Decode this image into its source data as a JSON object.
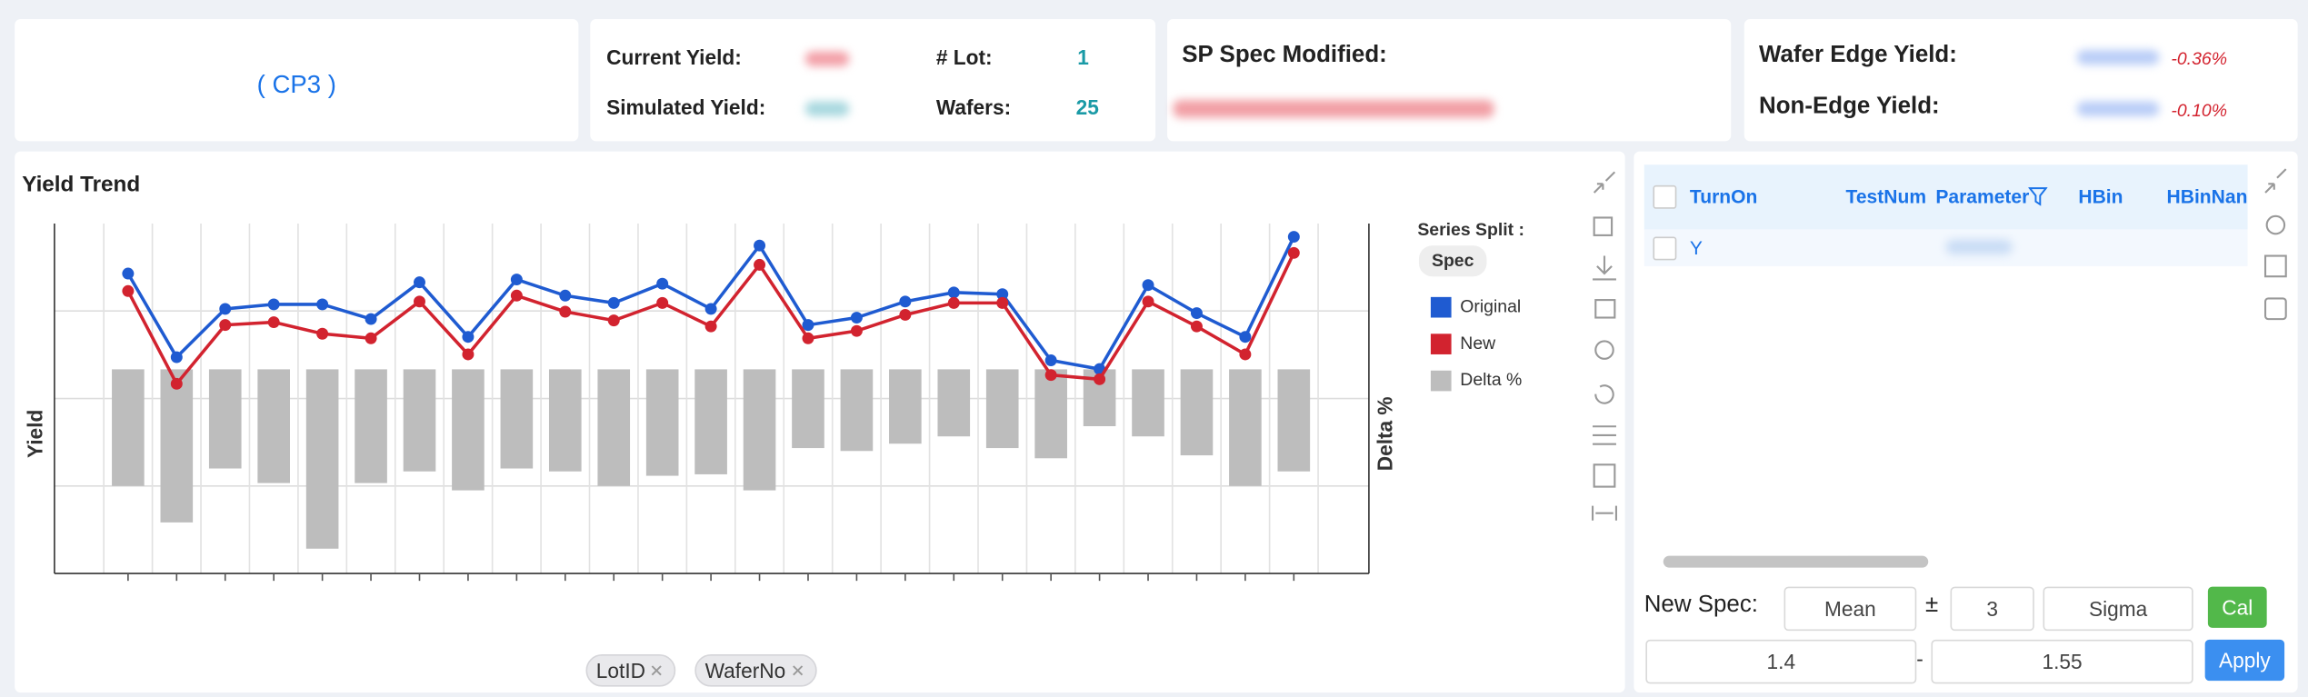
{
  "header": {
    "lot_open": "(",
    "lot": "CP3",
    "lot_close": ")",
    "current_yield_label": "Current Yield:",
    "lot_count_label": "# Lot:",
    "lot_count": "1",
    "simulated_yield_label": "Simulated Yield:",
    "wafers_label": "Wafers:",
    "wafers": "25",
    "sp_spec_label": "SP Spec Modified:",
    "edge_yield_label": "Wafer Edge Yield:",
    "edge_yield_delta": "-0.36%",
    "non_edge_yield_label": "Non-Edge Yield:",
    "non_edge_yield_delta": "-0.10%"
  },
  "chart_data": {
    "type": "combo",
    "title": "Yield Trend",
    "y_label": "Yield",
    "y2_label": "Delta %",
    "categories": [
      null,
      null,
      null,
      null,
      null,
      null,
      null,
      null,
      null,
      null,
      null,
      null,
      null,
      null,
      null,
      null,
      null,
      null,
      null,
      null,
      null,
      null,
      null,
      null,
      null
    ],
    "ylim": [
      0,
      100
    ],
    "y2lim": [
      -1.4,
      1
    ],
    "grid": true,
    "legend_title": "Series Split :",
    "legend_group": "Spec",
    "series": [
      {
        "name": "Original",
        "type": "line",
        "color": "#1f5bd1",
        "values": [
          85.7,
          61.8,
          75.6,
          76.9,
          76.9,
          72.7,
          83.2,
          67.6,
          84.0,
          79.4,
          77.3,
          82.8,
          75.6,
          93.7,
          71.0,
          73.1,
          77.7,
          80.3,
          79.8,
          60.9,
          58.4,
          82.4,
          74.4,
          67.6,
          96.2
        ]
      },
      {
        "name": "New",
        "type": "line",
        "color": "#d2232f",
        "values": [
          80.7,
          54.2,
          71.0,
          71.8,
          68.5,
          67.2,
          77.7,
          62.6,
          79.4,
          74.8,
          72.3,
          77.3,
          70.6,
          88.2,
          67.2,
          69.3,
          73.9,
          77.3,
          77.3,
          56.7,
          55.5,
          77.7,
          70.6,
          62.6,
          91.6
        ]
      },
      {
        "name": "Delta %",
        "type": "bar",
        "axis": "y2",
        "color": "#bdbdbd",
        "values": [
          -0.8,
          -1.05,
          -0.68,
          -0.78,
          -1.23,
          -0.78,
          -0.7,
          -0.83,
          -0.68,
          -0.7,
          -0.8,
          -0.73,
          -0.72,
          -0.83,
          -0.54,
          -0.56,
          -0.51,
          -0.46,
          -0.54,
          -0.61,
          -0.39,
          -0.46,
          -0.59,
          -0.8,
          -0.7
        ]
      }
    ]
  },
  "filters": [
    "LotID",
    "WaferNo"
  ],
  "table": {
    "columns": [
      "TurnOn",
      "TestNum",
      "Parameter",
      "HBin",
      "HBinNan"
    ],
    "rows": [
      [
        "Y"
      ]
    ]
  },
  "spec": {
    "label": "New Spec:",
    "center": "Mean",
    "plus_minus": "±",
    "k": "3",
    "unit": "Sigma",
    "cal": "Cal",
    "low": "1.4",
    "dash": "-",
    "high": "1.55",
    "apply": "Apply"
  }
}
